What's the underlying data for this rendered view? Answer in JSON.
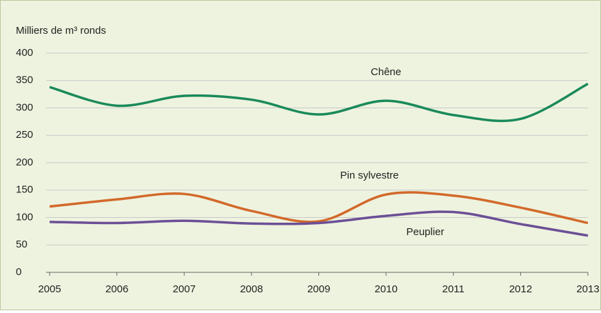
{
  "chart_data": {
    "type": "line",
    "y_label": "Milliers de m³ ronds",
    "x": [
      2005,
      2006,
      2007,
      2008,
      2009,
      2010,
      2011,
      2012,
      2013
    ],
    "xlim": [
      2005,
      2013
    ],
    "xticks": [
      2005,
      2006,
      2007,
      2008,
      2009,
      2010,
      2011,
      2012,
      2013
    ],
    "ylim": [
      0,
      400
    ],
    "yticks": [
      0,
      50,
      100,
      150,
      200,
      250,
      300,
      350,
      400
    ],
    "grid": true,
    "series": [
      {
        "name": "Chêne",
        "color": "#1a8a5a",
        "values": [
          338,
          304,
          322,
          315,
          288,
          313,
          287,
          280,
          344
        ]
      },
      {
        "name": "Pin sylvestre",
        "color": "#d2692a",
        "values": [
          120,
          133,
          143,
          112,
          93,
          142,
          140,
          118,
          90
        ]
      },
      {
        "name": "Peuplier",
        "color": "#6b4f96",
        "values": [
          92,
          90,
          94,
          89,
          90,
          103,
          110,
          88,
          67
        ]
      }
    ]
  }
}
